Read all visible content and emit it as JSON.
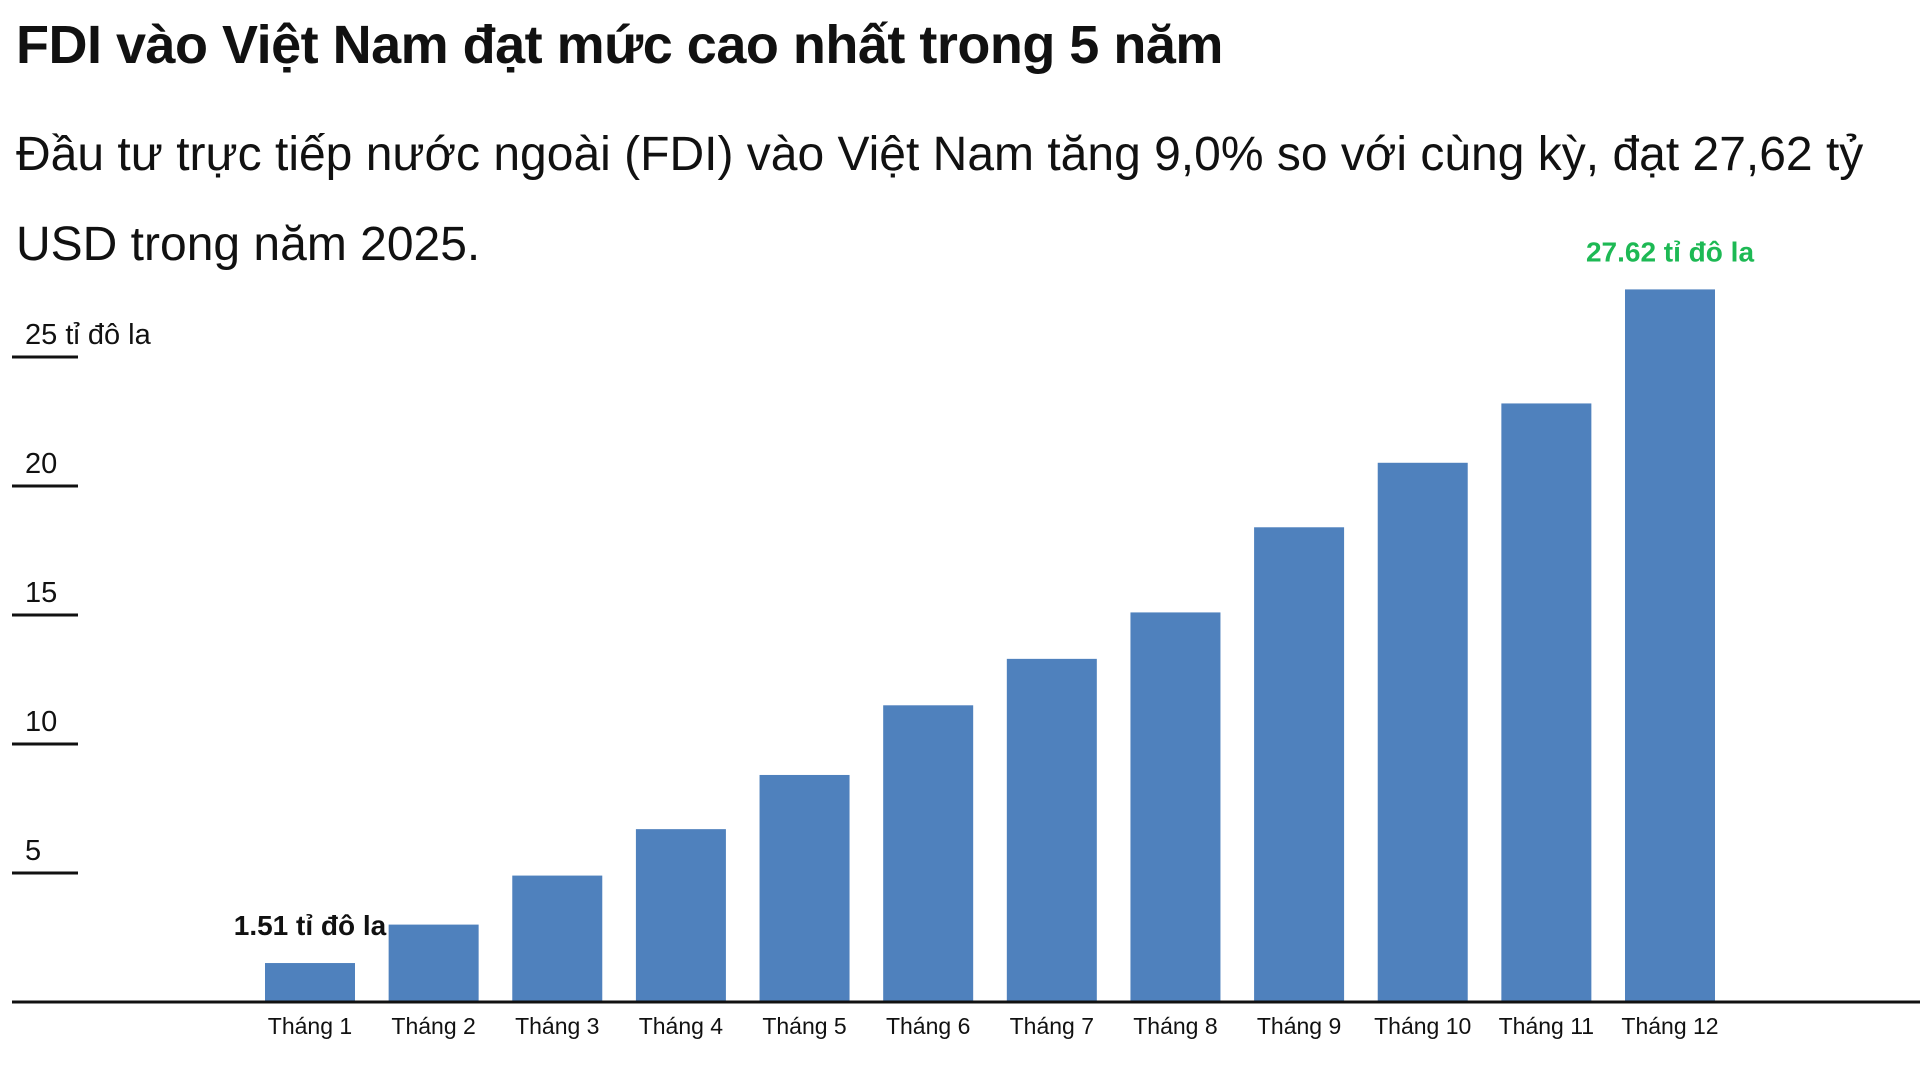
{
  "header": {
    "title": "FDI vào Việt Nam đạt mức cao nhất trong 5 năm",
    "subtitle": "Đầu tư trực tiếp nước ngoài (FDI) vào Việt Nam tăng 9,0% so với cùng kỳ, đạt 27,62 tỷ USD trong năm 2025."
  },
  "colors": {
    "bar": "#4f81bd",
    "highlight_label": "#1db954",
    "first_label": "#111111",
    "axis": "#111111"
  },
  "chart_data": {
    "type": "bar",
    "title": "",
    "xlabel": "",
    "ylabel": "",
    "categories": [
      "Tháng 1",
      "Tháng 2",
      "Tháng 3",
      "Tháng 4",
      "Tháng 5",
      "Tháng 6",
      "Tháng 7",
      "Tháng 8",
      "Tháng 9",
      "Tháng 10",
      "Tháng 11",
      "Tháng 12"
    ],
    "values": [
      1.51,
      3.0,
      4.9,
      6.7,
      8.8,
      11.5,
      13.3,
      15.1,
      18.4,
      20.9,
      23.2,
      27.62
    ],
    "ylim": [
      0,
      28
    ],
    "yticks": [
      5,
      10,
      15,
      20,
      25
    ],
    "ytick_labels": [
      "5",
      "10",
      "15",
      "20",
      "25 tỉ đô la"
    ],
    "annotations": [
      {
        "index": 0,
        "text": "1.51 tỉ đô la",
        "color_key": "first_label"
      },
      {
        "index": 11,
        "text": "27.62 tỉ đô la",
        "color_key": "highlight_label"
      }
    ],
    "grid": false,
    "legend": "none"
  }
}
